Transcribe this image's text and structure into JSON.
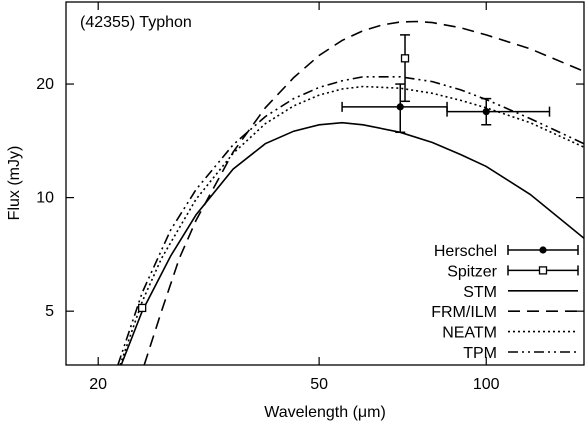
{
  "chart_data": {
    "type": "line",
    "title": "(42355) Typhon",
    "xlabel": "Wavelength (μm)",
    "ylabel": "Flux (mJy)",
    "xscale": "log",
    "yscale": "log",
    "xlim": [
      17.5,
      150
    ],
    "ylim": [
      3.6,
      33
    ],
    "grid": false,
    "legend_position": "bottom-right",
    "x_ticks": [
      20,
      50,
      100
    ],
    "y_ticks": [
      5,
      10,
      20
    ],
    "x_tick_labels": [
      "20",
      "50",
      "100"
    ],
    "y_tick_labels": [
      "5",
      "10",
      "20"
    ],
    "series": [
      {
        "name": "Herschel",
        "kind": "points",
        "marker": "filled-circle",
        "points": [
          {
            "x": 70,
            "y": 17.4,
            "xerr": [
              15,
              15
            ],
            "yerr": [
              2.5,
              2.6
            ]
          },
          {
            "x": 100,
            "y": 16.9,
            "xerr": [
              15,
              30
            ],
            "yerr": [
              1.3,
              1.4
            ]
          }
        ]
      },
      {
        "name": "Spitzer",
        "kind": "points",
        "marker": "open-square",
        "points": [
          {
            "x": 24,
            "y": 5.1,
            "xerr": [
              0,
              0
            ],
            "yerr": [
              0,
              0
            ]
          },
          {
            "x": 71.4,
            "y": 23.4,
            "xerr": [
              0,
              0
            ],
            "yerr": [
              5.4,
              3.6
            ]
          }
        ]
      },
      {
        "name": "STM",
        "kind": "line",
        "dash": "solid",
        "x": [
          22,
          24,
          27,
          30,
          35,
          40,
          45,
          50,
          55,
          60,
          70,
          80,
          90,
          100,
          120,
          150
        ],
        "y": [
          3.6,
          5.0,
          7.0,
          9.0,
          11.9,
          13.9,
          15.0,
          15.6,
          15.8,
          15.6,
          14.9,
          14.0,
          13.0,
          12.1,
          10.2,
          7.8
        ]
      },
      {
        "name": "FRM/ILM",
        "kind": "line",
        "dash": "dashed",
        "x": [
          24.2,
          26,
          28,
          30,
          35,
          40,
          45,
          50,
          55,
          60,
          65,
          70,
          75,
          80,
          90,
          100,
          120,
          150
        ],
        "y": [
          3.6,
          5.0,
          6.9,
          8.7,
          13.2,
          17.3,
          20.8,
          23.8,
          26.1,
          27.7,
          28.7,
          29.2,
          29.3,
          29.1,
          28.2,
          27.0,
          24.8,
          21.6
        ]
      },
      {
        "name": "NEATM",
        "kind": "line",
        "dash": "dotted",
        "x": [
          21.9,
          24,
          26,
          30,
          35,
          40,
          45,
          50,
          55,
          60,
          70,
          80,
          90,
          100,
          120,
          150
        ],
        "y": [
          3.6,
          5.3,
          6.9,
          9.9,
          13.1,
          15.7,
          17.5,
          18.7,
          19.4,
          19.7,
          19.5,
          18.9,
          18.1,
          17.3,
          15.8,
          13.6
        ]
      },
      {
        "name": "TPM",
        "kind": "line",
        "dash": "dash-dot-dot",
        "x": [
          21.7,
          24,
          27,
          30,
          35,
          40,
          45,
          50,
          55,
          60,
          70,
          80,
          90,
          100,
          120,
          150
        ],
        "y": [
          3.6,
          5.6,
          8.2,
          10.5,
          13.8,
          16.4,
          18.3,
          19.6,
          20.4,
          20.9,
          20.9,
          20.3,
          19.3,
          18.2,
          16.2,
          13.9
        ]
      }
    ]
  }
}
